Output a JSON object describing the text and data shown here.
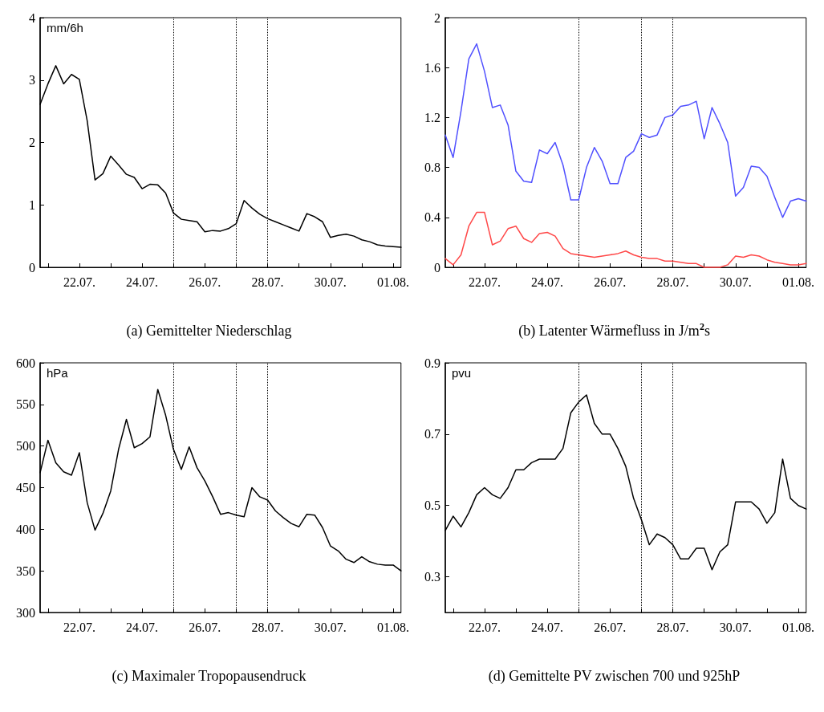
{
  "chart_data": [
    {
      "type": "line",
      "title": "(a) Gemittelter Niederschlag",
      "ylabel": "mm/6h",
      "marker": "none",
      "x": [
        "--07-20T18:00",
        "--07-21T00:00",
        "--07-21T06:00",
        "--07-21T12:00",
        "--07-21T18:00",
        "--07-22T00:00",
        "--07-22T06:00",
        "--07-22T12:00",
        "--07-22T18:00",
        "--07-23T00:00",
        "--07-23T06:00",
        "--07-23T12:00",
        "--07-23T18:00",
        "--07-24T00:00",
        "--07-24T06:00",
        "--07-24T12:00",
        "--07-24T18:00",
        "--07-25T00:00",
        "--07-25T06:00",
        "--07-25T12:00",
        "--07-25T18:00",
        "--07-26T00:00",
        "--07-26T06:00",
        "--07-26T12:00",
        "--07-26T18:00",
        "--07-27T00:00",
        "--07-27T06:00",
        "--07-27T12:00",
        "--07-27T18:00",
        "--07-28T00:00",
        "--07-28T06:00",
        "--07-28T12:00",
        "--07-28T18:00",
        "--07-29T00:00",
        "--07-29T06:00",
        "--07-29T12:00",
        "--07-29T18:00",
        "--07-30T00:00",
        "--07-30T06:00",
        "--07-30T12:00",
        "--07-30T18:00",
        "--07-31T00:00",
        "--07-31T06:00",
        "--07-31T12:00",
        "--07-31T18:00",
        "--08-01T00:00",
        "--08-01T06:00"
      ],
      "xlim": [
        "--07-20T18:00",
        "--08-01T06:00"
      ],
      "xticks": [
        {
          "value": "--07-21",
          "label": null
        },
        {
          "value": "--07-22",
          "label": "22.07."
        },
        {
          "value": "--07-23",
          "label": null
        },
        {
          "value": "--07-24",
          "label": "24.07."
        },
        {
          "value": "--07-25",
          "label": null
        },
        {
          "value": "--07-26",
          "label": "26.07."
        },
        {
          "value": "--07-27",
          "label": null
        },
        {
          "value": "--07-28",
          "label": "28.07."
        },
        {
          "value": "--07-29",
          "label": null
        },
        {
          "value": "--07-30",
          "label": "30.07."
        },
        {
          "value": "--07-31",
          "label": null
        },
        {
          "value": "--08-01",
          "label": "01.08."
        }
      ],
      "ylim": [
        0,
        4
      ],
      "yticks": [
        0,
        1,
        2,
        3,
        4
      ],
      "series": [
        {
          "color": "#000000",
          "values": [
            2.61,
            2.94,
            3.23,
            2.94,
            3.09,
            3.01,
            2.35,
            1.4,
            1.5,
            1.78,
            1.64,
            1.49,
            1.44,
            1.26,
            1.33,
            1.32,
            1.19,
            0.87,
            0.77,
            0.75,
            0.73,
            0.57,
            0.59,
            0.58,
            0.62,
            0.7,
            1.07,
            0.95,
            0.85,
            0.78,
            0.73,
            0.68,
            0.63,
            0.58,
            0.86,
            0.81,
            0.73,
            0.48,
            0.51,
            0.53,
            0.5,
            0.44,
            0.41,
            0.36,
            0.34,
            0.33,
            0.32
          ]
        }
      ],
      "ref_lines": [
        {
          "axis": "x",
          "value": "--07-25",
          "color": "#000000",
          "line_style": "dotted"
        },
        {
          "axis": "x",
          "value": "--07-27",
          "color": "#000000",
          "line_style": "dotted"
        },
        {
          "axis": "x",
          "value": "--07-28",
          "color": "#000000",
          "line_style": "dotted"
        }
      ]
    },
    {
      "type": "line",
      "title": "(b) Latenter Wärmefluss in J/m$^{2}$s",
      "marker": "none",
      "x": [
        "--07-20T18:00",
        "--07-21T00:00",
        "--07-21T06:00",
        "--07-21T12:00",
        "--07-21T18:00",
        "--07-22T00:00",
        "--07-22T06:00",
        "--07-22T12:00",
        "--07-22T18:00",
        "--07-23T00:00",
        "--07-23T06:00",
        "--07-23T12:00",
        "--07-23T18:00",
        "--07-24T00:00",
        "--07-24T06:00",
        "--07-24T12:00",
        "--07-24T18:00",
        "--07-25T00:00",
        "--07-25T06:00",
        "--07-25T12:00",
        "--07-25T18:00",
        "--07-26T00:00",
        "--07-26T06:00",
        "--07-26T12:00",
        "--07-26T18:00",
        "--07-27T00:00",
        "--07-27T06:00",
        "--07-27T12:00",
        "--07-27T18:00",
        "--07-28T00:00",
        "--07-28T06:00",
        "--07-28T12:00",
        "--07-28T18:00",
        "--07-29T00:00",
        "--07-29T06:00",
        "--07-29T12:00",
        "--07-29T18:00",
        "--07-30T00:00",
        "--07-30T06:00",
        "--07-30T12:00",
        "--07-30T18:00",
        "--07-31T00:00",
        "--07-31T06:00",
        "--07-31T12:00",
        "--07-31T18:00",
        "--08-01T00:00",
        "--08-01T06:00"
      ],
      "xlim": [
        "--07-20T18:00",
        "--08-01T06:00"
      ],
      "xticks": [
        {
          "value": "--07-21",
          "label": null
        },
        {
          "value": "--07-22",
          "label": "22.07."
        },
        {
          "value": "--07-23",
          "label": null
        },
        {
          "value": "--07-24",
          "label": "24.07."
        },
        {
          "value": "--07-25",
          "label": null
        },
        {
          "value": "--07-26",
          "label": "26.07."
        },
        {
          "value": "--07-27",
          "label": null
        },
        {
          "value": "--07-28",
          "label": "28.07."
        },
        {
          "value": "--07-29",
          "label": null
        },
        {
          "value": "--07-30",
          "label": "30.07."
        },
        {
          "value": "--07-31",
          "label": null
        },
        {
          "value": "--08-01",
          "label": "01.08."
        }
      ],
      "ylim": [
        0,
        2
      ],
      "yticks": [
        0,
        0.4,
        0.8,
        1.2,
        1.6,
        2
      ],
      "series": [
        {
          "color": "#5050ff",
          "values": [
            1.06,
            0.88,
            1.25,
            1.67,
            1.79,
            1.57,
            1.28,
            1.3,
            1.14,
            0.77,
            0.69,
            0.68,
            0.94,
            0.91,
            1.0,
            0.82,
            0.54,
            0.54,
            0.8,
            0.96,
            0.85,
            0.67,
            0.67,
            0.88,
            0.93,
            1.07,
            1.04,
            1.06,
            1.2,
            1.22,
            1.29,
            1.3,
            1.33,
            1.03,
            1.28,
            1.15,
            1.0,
            0.57,
            0.64,
            0.81,
            0.8,
            0.73,
            0.56,
            0.4,
            0.53,
            0.55,
            0.53
          ]
        },
        {
          "color": "#ff4848",
          "values": [
            0.07,
            0.02,
            0.1,
            0.33,
            0.44,
            0.44,
            0.18,
            0.21,
            0.31,
            0.33,
            0.23,
            0.2,
            0.27,
            0.28,
            0.25,
            0.15,
            0.11,
            0.1,
            0.09,
            0.08,
            0.09,
            0.1,
            0.11,
            0.13,
            0.1,
            0.08,
            0.07,
            0.07,
            0.05,
            0.05,
            0.04,
            0.03,
            0.03,
            0,
            0,
            0,
            0.02,
            0.09,
            0.08,
            0.1,
            0.09,
            0.06,
            0.04,
            0.03,
            0.02,
            0.02,
            0.03
          ]
        }
      ],
      "ref_lines": [
        {
          "axis": "x",
          "value": "--07-25",
          "color": "#000000",
          "line_style": "dotted"
        },
        {
          "axis": "x",
          "value": "--07-27",
          "color": "#000000",
          "line_style": "dotted"
        },
        {
          "axis": "x",
          "value": "--07-28",
          "color": "#000000",
          "line_style": "dotted"
        }
      ]
    },
    {
      "type": "line",
      "title": "(c) Maximaler Tropopausendruck",
      "ylabel": "hPa",
      "marker": "none",
      "x": [
        "--07-20T18:00",
        "--07-21T00:00",
        "--07-21T06:00",
        "--07-21T12:00",
        "--07-21T18:00",
        "--07-22T00:00",
        "--07-22T06:00",
        "--07-22T12:00",
        "--07-22T18:00",
        "--07-23T00:00",
        "--07-23T06:00",
        "--07-23T12:00",
        "--07-23T18:00",
        "--07-24T00:00",
        "--07-24T06:00",
        "--07-24T12:00",
        "--07-24T18:00",
        "--07-25T00:00",
        "--07-25T06:00",
        "--07-25T12:00",
        "--07-25T18:00",
        "--07-26T00:00",
        "--07-26T06:00",
        "--07-26T12:00",
        "--07-26T18:00",
        "--07-27T00:00",
        "--07-27T06:00",
        "--07-27T12:00",
        "--07-27T18:00",
        "--07-28T00:00",
        "--07-28T06:00",
        "--07-28T12:00",
        "--07-28T18:00",
        "--07-29T00:00",
        "--07-29T06:00",
        "--07-29T12:00",
        "--07-29T18:00",
        "--07-30T00:00",
        "--07-30T06:00",
        "--07-30T12:00",
        "--07-30T18:00",
        "--07-31T00:00",
        "--07-31T06:00",
        "--07-31T12:00",
        "--07-31T18:00",
        "--08-01T00:00",
        "--08-01T06:00"
      ],
      "xlim": [
        "--07-20T18:00",
        "--08-01T06:00"
      ],
      "xticks": [
        {
          "value": "--07-21",
          "label": null
        },
        {
          "value": "--07-22",
          "label": "22.07."
        },
        {
          "value": "--07-23",
          "label": null
        },
        {
          "value": "--07-24",
          "label": "24.07."
        },
        {
          "value": "--07-25",
          "label": null
        },
        {
          "value": "--07-26",
          "label": "26.07."
        },
        {
          "value": "--07-27",
          "label": null
        },
        {
          "value": "--07-28",
          "label": "28.07."
        },
        {
          "value": "--07-29",
          "label": null
        },
        {
          "value": "--07-30",
          "label": "30.07."
        },
        {
          "value": "--07-31",
          "label": null
        },
        {
          "value": "--08-01",
          "label": "01.08."
        }
      ],
      "ylim": [
        300,
        600
      ],
      "yticks": [
        300,
        350,
        400,
        450,
        500,
        550,
        600
      ],
      "series": [
        {
          "color": "#000000",
          "values": [
            468,
            507,
            480,
            469,
            465,
            492,
            432,
            399,
            419,
            446,
            496,
            532,
            498,
            503,
            511,
            568,
            537,
            496,
            472,
            499,
            474,
            458,
            439,
            418,
            420,
            417,
            415,
            450,
            439,
            435,
            422,
            414,
            407,
            403,
            418,
            417,
            402,
            380,
            374,
            364,
            360,
            367,
            361,
            358,
            357,
            357,
            350
          ]
        }
      ],
      "ref_lines": [
        {
          "axis": "x",
          "value": "--07-25",
          "color": "#000000",
          "line_style": "dotted"
        },
        {
          "axis": "x",
          "value": "--07-27",
          "color": "#000000",
          "line_style": "dotted"
        },
        {
          "axis": "x",
          "value": "--07-28",
          "color": "#000000",
          "line_style": "dotted"
        }
      ]
    },
    {
      "type": "line",
      "title": "(d) Gemittelte PV zwischen 700 und 925hP",
      "ylabel": "pvu",
      "marker": "none",
      "x": [
        "--07-20T18:00",
        "--07-21T00:00",
        "--07-21T06:00",
        "--07-21T12:00",
        "--07-21T18:00",
        "--07-22T00:00",
        "--07-22T06:00",
        "--07-22T12:00",
        "--07-22T18:00",
        "--07-23T00:00",
        "--07-23T06:00",
        "--07-23T12:00",
        "--07-23T18:00",
        "--07-24T00:00",
        "--07-24T06:00",
        "--07-24T12:00",
        "--07-24T18:00",
        "--07-25T00:00",
        "--07-25T06:00",
        "--07-25T12:00",
        "--07-25T18:00",
        "--07-26T00:00",
        "--07-26T06:00",
        "--07-26T12:00",
        "--07-26T18:00",
        "--07-27T00:00",
        "--07-27T06:00",
        "--07-27T12:00",
        "--07-27T18:00",
        "--07-28T00:00",
        "--07-28T06:00",
        "--07-28T12:00",
        "--07-28T18:00",
        "--07-29T00:00",
        "--07-29T06:00",
        "--07-29T12:00",
        "--07-29T18:00",
        "--07-30T00:00",
        "--07-30T06:00",
        "--07-30T12:00",
        "--07-30T18:00",
        "--07-31T00:00",
        "--07-31T06:00",
        "--07-31T12:00",
        "--07-31T18:00",
        "--08-01T00:00",
        "--08-01T06:00"
      ],
      "xlim": [
        "--07-20T18:00",
        "--08-01T06:00"
      ],
      "xticks": [
        {
          "value": "--07-21",
          "label": null
        },
        {
          "value": "--07-22",
          "label": "22.07."
        },
        {
          "value": "--07-23",
          "label": null
        },
        {
          "value": "--07-24",
          "label": "24.07."
        },
        {
          "value": "--07-25",
          "label": null
        },
        {
          "value": "--07-26",
          "label": "26.07."
        },
        {
          "value": "--07-27",
          "label": null
        },
        {
          "value": "--07-28",
          "label": "28.07."
        },
        {
          "value": "--07-29",
          "label": null
        },
        {
          "value": "--07-30",
          "label": "30.07."
        },
        {
          "value": "--07-31",
          "label": null
        },
        {
          "value": "--08-01",
          "label": "01.08."
        }
      ],
      "ylim": [
        0.2,
        0.9
      ],
      "yticks": [
        0.3,
        0.5,
        0.7,
        0.9
      ],
      "series": [
        {
          "color": "#000000",
          "values": [
            0.43,
            0.47,
            0.44,
            0.48,
            0.53,
            0.55,
            0.53,
            0.52,
            0.55,
            0.6,
            0.6,
            0.62,
            0.63,
            0.63,
            0.63,
            0.66,
            0.76,
            0.79,
            0.81,
            0.73,
            0.7,
            0.7,
            0.66,
            0.61,
            0.52,
            0.46,
            0.39,
            0.42,
            0.41,
            0.39,
            0.35,
            0.35,
            0.38,
            0.38,
            0.32,
            0.37,
            0.39,
            0.51,
            0.51,
            0.51,
            0.49,
            0.45,
            0.48,
            0.63,
            0.52,
            0.5,
            0.49
          ]
        }
      ],
      "ref_lines": [
        {
          "axis": "x",
          "value": "--07-25",
          "color": "#000000",
          "line_style": "dotted"
        },
        {
          "axis": "x",
          "value": "--07-27",
          "color": "#000000",
          "line_style": "dotted"
        },
        {
          "axis": "x",
          "value": "--07-28",
          "color": "#000000",
          "line_style": "dotted"
        }
      ]
    }
  ]
}
